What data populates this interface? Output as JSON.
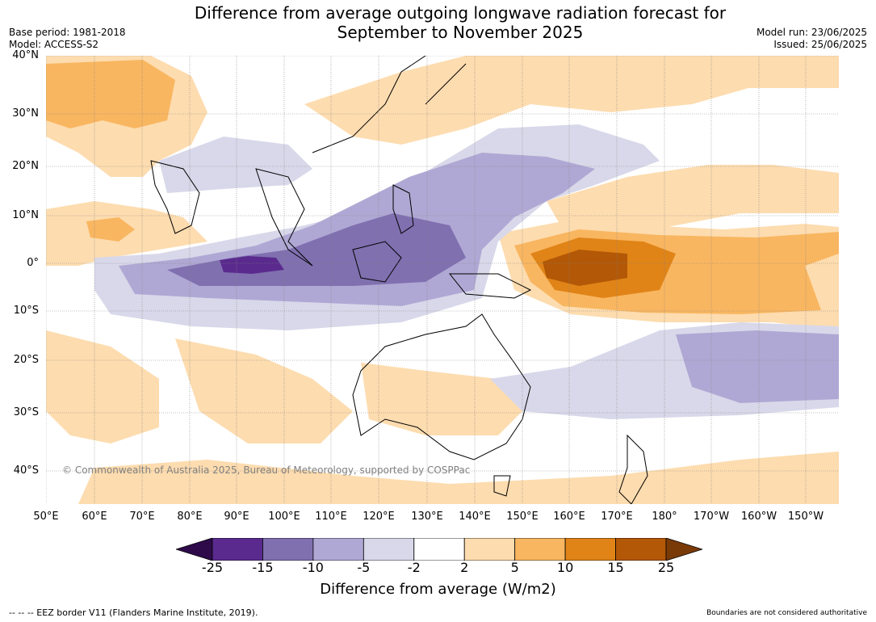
{
  "title_line1": "Difference from average outgoing longwave radiation forecast for",
  "title_line2": "September to November 2025",
  "base_period": "Base period: 1981-2018",
  "model": "Model: ACCESS-S2",
  "model_run": "Model run: 23/06/2025",
  "issued": "Issued: 25/06/2025",
  "lat_labels": [
    "40°N",
    "30°N",
    "20°N",
    "10°N",
    "0°",
    "10°S",
    "20°S",
    "30°S",
    "40°S"
  ],
  "lon_labels": [
    "50°E",
    "60°E",
    "70°E",
    "80°E",
    "90°E",
    "100°E",
    "110°E",
    "120°E",
    "130°E",
    "140°E",
    "150°E",
    "160°E",
    "170°E",
    "180°",
    "170°W",
    "160°W",
    "150°W"
  ],
  "colorbar_ticks": [
    "-25",
    "-15",
    "-10",
    "-5",
    "-2",
    "2",
    "5",
    "10",
    "15",
    "25"
  ],
  "colorbar_colors": [
    "#2e0a4b",
    "#5a2a8e",
    "#8070b0",
    "#b0a8d4",
    "#d8d8ea",
    "#ffffff",
    "#fddcaf",
    "#f9b660",
    "#e08418",
    "#b35806",
    "#7a3a08"
  ],
  "colorbar_title": "Difference from average (W/m2)",
  "copyright": "© Commonwealth of Australia 2025, Bureau of Meteorology, supported by COSPPac",
  "eez_note": "-- -- -- EEZ border V11 (Flanders Marine Institute, 2019).",
  "boundaries_note": "Boundaries are not considered authoritative"
}
